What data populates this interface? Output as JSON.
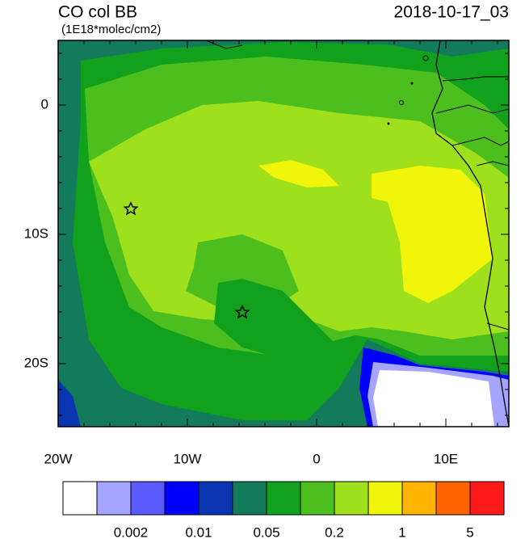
{
  "header": {
    "title": "CO col BB",
    "units": "(1E18*molec/cm2)",
    "timestamp": "2018-10-17_03"
  },
  "map": {
    "lat_labels": [
      "0",
      "10S",
      "20S"
    ],
    "lon_labels": [
      "20W",
      "10W",
      "0",
      "10E"
    ]
  },
  "colorbar": {
    "colors": [
      "#ffffff",
      "#a5a5ff",
      "#5a5aff",
      "#0000ff",
      "#0a35b0",
      "#147a5c",
      "#11a11d",
      "#4cbf1f",
      "#9fe01d",
      "#f0f50a",
      "#ffb400",
      "#ff6400",
      "#ff1a1a"
    ],
    "labels": [
      "0.002",
      "0.01",
      "0.05",
      "0.2",
      "1",
      "5"
    ]
  }
}
